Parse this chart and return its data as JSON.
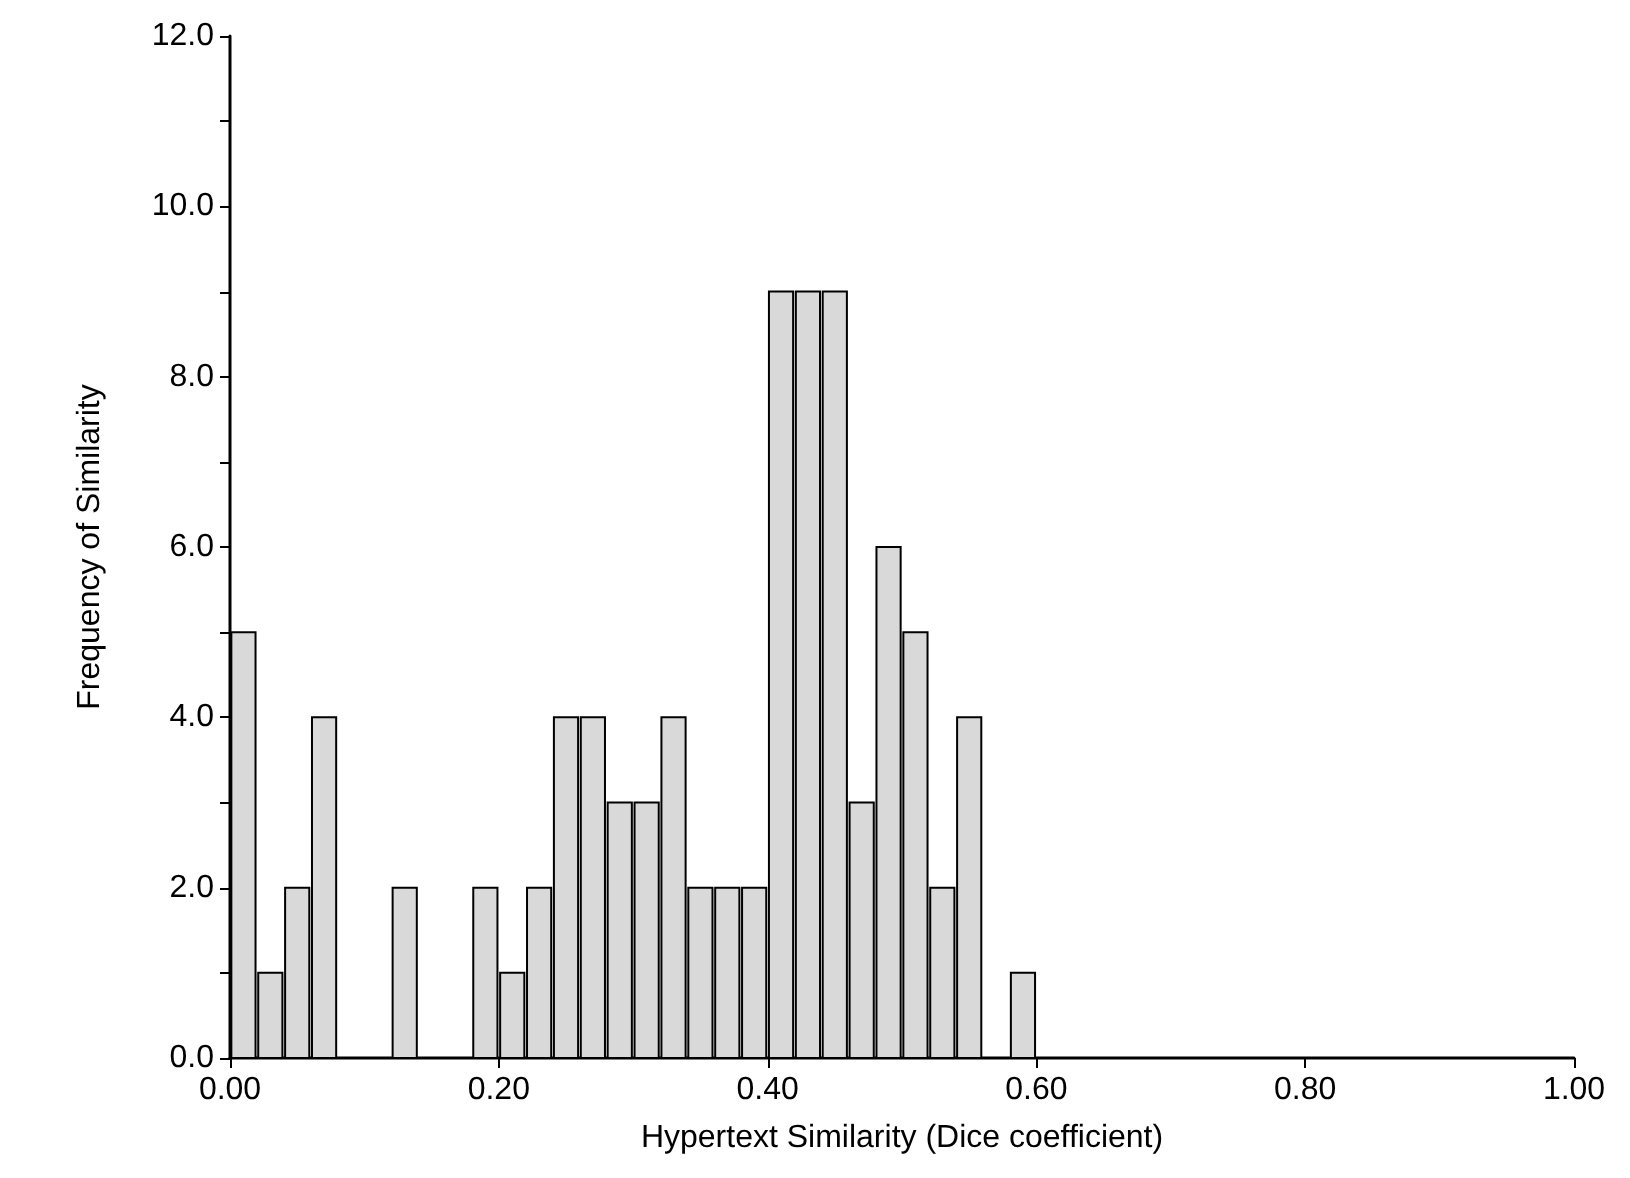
{
  "chart_data": {
    "type": "histogram",
    "xlabel": "Hypertext Similarity (Dice coefficient)",
    "ylabel": "Frequency of Similarity",
    "bins": [
      0,
      0.02,
      0.04,
      0.06,
      0.08,
      0.1,
      0.12,
      0.14,
      0.16,
      0.18,
      0.2,
      0.22,
      0.24,
      0.26,
      0.28,
      0.3,
      0.32,
      0.34,
      0.36,
      0.38,
      0.4,
      0.42,
      0.44,
      0.46,
      0.48,
      0.5,
      0.52,
      0.54,
      0.56,
      0.58,
      0.6,
      0.62,
      0.64,
      0.66,
      0.68,
      0.7,
      0.72,
      0.74,
      0.76,
      0.78,
      0.8,
      0.82,
      0.84,
      0.86,
      0.88,
      0.9,
      0.92,
      0.94,
      0.96,
      0.98,
      1
    ],
    "values": [
      5,
      1,
      2,
      4,
      0,
      0,
      2,
      0,
      0,
      2,
      1,
      2,
      4,
      4,
      3,
      3,
      4,
      2,
      2,
      2,
      9,
      9,
      9,
      3,
      6,
      5,
      2,
      4,
      0,
      1,
      0,
      0,
      0,
      0,
      0,
      0,
      0,
      0,
      0,
      0,
      0,
      0,
      0,
      0,
      0,
      0,
      0,
      0,
      0,
      0
    ],
    "color": "#d9d9d9",
    "xlim": [
      0,
      1
    ],
    "xticks": [
      {
        "value": 0,
        "label": "0.00"
      },
      {
        "value": 0.2,
        "label": "0.20"
      },
      {
        "value": 0.4,
        "label": "0.40"
      },
      {
        "value": 0.6,
        "label": "0.60"
      },
      {
        "value": 0.8,
        "label": "0.80"
      },
      {
        "value": 1,
        "label": "1.00"
      }
    ],
    "ylim": [
      0,
      12
    ],
    "yticks": [
      {
        "value": 0,
        "label": "0.0"
      },
      {
        "value": 1,
        "label": null
      },
      {
        "value": 2,
        "label": "2.0"
      },
      {
        "value": 3,
        "label": null
      },
      {
        "value": 4,
        "label": "4.0"
      },
      {
        "value": 5,
        "label": null
      },
      {
        "value": 6,
        "label": "6.0"
      },
      {
        "value": 7,
        "label": null
      },
      {
        "value": 8,
        "label": "8.0"
      },
      {
        "value": 9,
        "label": null
      },
      {
        "value": 10,
        "label": "10.0"
      },
      {
        "value": 11,
        "label": null
      },
      {
        "value": 12,
        "label": "12.0"
      }
    ],
    "grid": false
  }
}
